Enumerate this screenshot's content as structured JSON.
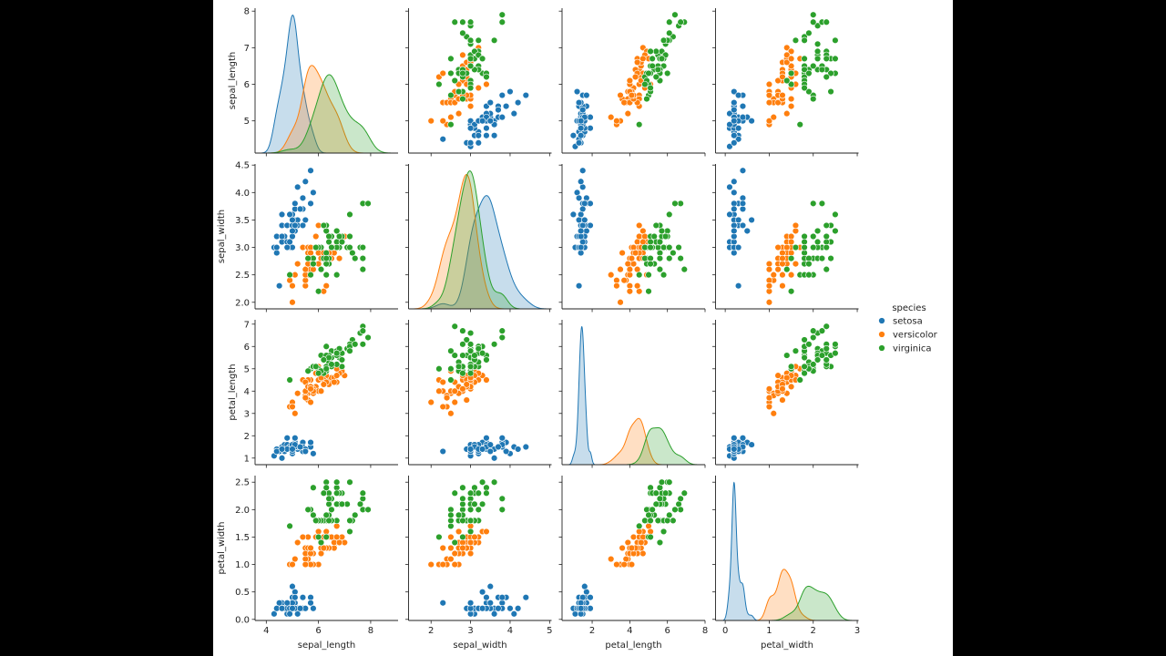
{
  "chart_data": {
    "type": "scatter",
    "layout": "pairplot",
    "diagonal": "kde",
    "grid": false,
    "legend_position": "right",
    "variables": [
      "sepal_length",
      "sepal_width",
      "petal_length",
      "petal_width"
    ],
    "axes": {
      "sepal_length": {
        "label": "sepal_length",
        "scatter_range": [
          4.12,
          8.08
        ],
        "diag_range": [
          3.57,
          9.05
        ],
        "xticks": [
          "4",
          "6",
          "8"
        ],
        "yticks": [
          "5",
          "6",
          "7",
          "8"
        ]
      },
      "sepal_width": {
        "label": "sepal_width",
        "scatter_range": [
          1.88,
          4.52
        ],
        "diag_range": [
          1.43,
          5.05
        ],
        "xticks": [
          "2",
          "3",
          "4",
          "5"
        ],
        "yticks": [
          "2.0",
          "2.5",
          "3.0",
          "3.5",
          "4.0",
          "4.5"
        ]
      },
      "petal_length": {
        "label": "petal_length",
        "scatter_range": [
          0.705,
          7.195
        ],
        "diag_range": [
          0.4,
          8.0
        ],
        "xticks": [
          "2",
          "4",
          "6",
          "8"
        ],
        "yticks": [
          "1",
          "2",
          "3",
          "4",
          "5",
          "6",
          "7"
        ]
      },
      "petal_width": {
        "label": "petal_width",
        "scatter_range": [
          -0.02,
          2.62
        ],
        "diag_range": [
          -0.22,
          3.03
        ],
        "xticks": [
          "0",
          "1",
          "2",
          "3"
        ],
        "yticks": [
          "0.0",
          "0.5",
          "1.0",
          "1.5",
          "2.0",
          "2.5"
        ]
      }
    },
    "legend": {
      "title": "species"
    },
    "series": [
      {
        "name": "setosa",
        "color": "#1f77b4",
        "rows": [
          [
            5.1,
            3.5,
            1.4,
            0.2
          ],
          [
            4.9,
            3.0,
            1.4,
            0.2
          ],
          [
            4.7,
            3.2,
            1.3,
            0.2
          ],
          [
            4.6,
            3.1,
            1.5,
            0.2
          ],
          [
            5.0,
            3.6,
            1.4,
            0.2
          ],
          [
            5.4,
            3.9,
            1.7,
            0.4
          ],
          [
            4.6,
            3.4,
            1.4,
            0.3
          ],
          [
            5.0,
            3.4,
            1.5,
            0.2
          ],
          [
            4.4,
            2.9,
            1.4,
            0.2
          ],
          [
            4.9,
            3.1,
            1.5,
            0.1
          ],
          [
            5.4,
            3.7,
            1.5,
            0.2
          ],
          [
            4.8,
            3.4,
            1.6,
            0.2
          ],
          [
            4.8,
            3.0,
            1.4,
            0.1
          ],
          [
            4.3,
            3.0,
            1.1,
            0.1
          ],
          [
            5.8,
            4.0,
            1.2,
            0.2
          ],
          [
            5.7,
            4.4,
            1.5,
            0.4
          ],
          [
            5.4,
            3.9,
            1.3,
            0.4
          ],
          [
            5.1,
            3.5,
            1.4,
            0.3
          ],
          [
            5.7,
            3.8,
            1.7,
            0.3
          ],
          [
            5.1,
            3.8,
            1.5,
            0.3
          ],
          [
            5.4,
            3.4,
            1.7,
            0.2
          ],
          [
            5.1,
            3.7,
            1.5,
            0.4
          ],
          [
            4.6,
            3.6,
            1.0,
            0.2
          ],
          [
            5.1,
            3.3,
            1.7,
            0.5
          ],
          [
            4.8,
            3.4,
            1.9,
            0.2
          ],
          [
            5.0,
            3.0,
            1.6,
            0.2
          ],
          [
            5.0,
            3.4,
            1.6,
            0.4
          ],
          [
            5.2,
            3.5,
            1.5,
            0.2
          ],
          [
            5.2,
            3.4,
            1.4,
            0.2
          ],
          [
            4.7,
            3.2,
            1.6,
            0.2
          ],
          [
            4.8,
            3.1,
            1.6,
            0.2
          ],
          [
            5.4,
            3.4,
            1.5,
            0.4
          ],
          [
            5.2,
            4.1,
            1.5,
            0.1
          ],
          [
            5.5,
            4.2,
            1.4,
            0.2
          ],
          [
            4.9,
            3.1,
            1.5,
            0.2
          ],
          [
            5.0,
            3.2,
            1.2,
            0.2
          ],
          [
            5.5,
            3.5,
            1.3,
            0.2
          ],
          [
            4.9,
            3.6,
            1.4,
            0.1
          ],
          [
            4.4,
            3.0,
            1.3,
            0.2
          ],
          [
            5.1,
            3.4,
            1.5,
            0.2
          ],
          [
            5.0,
            3.5,
            1.3,
            0.3
          ],
          [
            4.5,
            2.3,
            1.3,
            0.3
          ],
          [
            4.4,
            3.2,
            1.3,
            0.2
          ],
          [
            5.0,
            3.5,
            1.6,
            0.6
          ],
          [
            5.1,
            3.8,
            1.9,
            0.4
          ],
          [
            4.8,
            3.0,
            1.4,
            0.3
          ],
          [
            5.1,
            3.8,
            1.6,
            0.2
          ],
          [
            4.6,
            3.2,
            1.4,
            0.2
          ],
          [
            5.3,
            3.7,
            1.5,
            0.2
          ],
          [
            5.0,
            3.3,
            1.4,
            0.2
          ]
        ]
      },
      {
        "name": "versicolor",
        "color": "#ff7f0e",
        "rows": [
          [
            7.0,
            3.2,
            4.7,
            1.4
          ],
          [
            6.4,
            3.2,
            4.5,
            1.5
          ],
          [
            6.9,
            3.1,
            4.9,
            1.5
          ],
          [
            5.5,
            2.3,
            4.0,
            1.3
          ],
          [
            6.5,
            2.8,
            4.6,
            1.5
          ],
          [
            5.7,
            2.8,
            4.5,
            1.3
          ],
          [
            6.3,
            3.3,
            4.7,
            1.6
          ],
          [
            4.9,
            2.4,
            3.3,
            1.0
          ],
          [
            6.6,
            2.9,
            4.6,
            1.3
          ],
          [
            5.2,
            2.7,
            3.9,
            1.4
          ],
          [
            5.0,
            2.0,
            3.5,
            1.0
          ],
          [
            5.9,
            3.0,
            4.2,
            1.5
          ],
          [
            6.0,
            2.2,
            4.0,
            1.0
          ],
          [
            6.1,
            2.9,
            4.7,
            1.4
          ],
          [
            5.6,
            2.9,
            3.6,
            1.3
          ],
          [
            6.7,
            3.1,
            4.4,
            1.4
          ],
          [
            5.6,
            3.0,
            4.5,
            1.5
          ],
          [
            5.8,
            2.7,
            4.1,
            1.0
          ],
          [
            6.2,
            2.2,
            4.5,
            1.5
          ],
          [
            5.6,
            2.5,
            3.9,
            1.1
          ],
          [
            5.9,
            3.2,
            4.8,
            1.8
          ],
          [
            6.1,
            2.8,
            4.0,
            1.3
          ],
          [
            6.3,
            2.5,
            4.9,
            1.5
          ],
          [
            6.1,
            2.8,
            4.7,
            1.2
          ],
          [
            6.4,
            2.9,
            4.3,
            1.3
          ],
          [
            6.6,
            3.0,
            4.4,
            1.4
          ],
          [
            6.8,
            2.8,
            4.8,
            1.4
          ],
          [
            6.7,
            3.0,
            5.0,
            1.7
          ],
          [
            6.0,
            2.9,
            4.5,
            1.5
          ],
          [
            5.7,
            2.6,
            3.5,
            1.0
          ],
          [
            5.5,
            2.4,
            3.8,
            1.1
          ],
          [
            5.5,
            2.4,
            3.7,
            1.0
          ],
          [
            5.8,
            2.7,
            3.9,
            1.2
          ],
          [
            6.0,
            2.7,
            5.1,
            1.6
          ],
          [
            5.4,
            3.0,
            4.5,
            1.5
          ],
          [
            6.0,
            3.4,
            4.5,
            1.6
          ],
          [
            6.7,
            3.1,
            4.7,
            1.5
          ],
          [
            6.3,
            2.3,
            4.4,
            1.3
          ],
          [
            5.6,
            3.0,
            4.1,
            1.3
          ],
          [
            5.5,
            2.5,
            4.0,
            1.3
          ],
          [
            5.5,
            2.6,
            4.4,
            1.2
          ],
          [
            6.1,
            3.0,
            4.6,
            1.4
          ],
          [
            5.8,
            2.6,
            4.0,
            1.2
          ],
          [
            5.0,
            2.3,
            3.3,
            1.0
          ],
          [
            5.6,
            2.7,
            4.2,
            1.3
          ],
          [
            5.7,
            3.0,
            4.2,
            1.2
          ],
          [
            5.7,
            2.9,
            4.2,
            1.3
          ],
          [
            6.2,
            2.9,
            4.3,
            1.3
          ],
          [
            5.1,
            2.5,
            3.0,
            1.1
          ],
          [
            5.7,
            2.8,
            4.1,
            1.3
          ]
        ]
      },
      {
        "name": "virginica",
        "color": "#2ca02c",
        "rows": [
          [
            6.3,
            3.3,
            6.0,
            2.5
          ],
          [
            5.8,
            2.7,
            5.1,
            1.9
          ],
          [
            7.1,
            3.0,
            5.9,
            2.1
          ],
          [
            6.3,
            2.9,
            5.6,
            1.8
          ],
          [
            6.5,
            3.0,
            5.8,
            2.2
          ],
          [
            7.6,
            3.0,
            6.6,
            2.1
          ],
          [
            4.9,
            2.5,
            4.5,
            1.7
          ],
          [
            7.3,
            2.9,
            6.3,
            1.8
          ],
          [
            6.7,
            2.5,
            5.8,
            1.8
          ],
          [
            7.2,
            3.6,
            6.1,
            2.5
          ],
          [
            6.5,
            3.2,
            5.1,
            2.0
          ],
          [
            6.4,
            2.7,
            5.3,
            1.9
          ],
          [
            6.8,
            3.0,
            5.5,
            2.1
          ],
          [
            5.7,
            2.5,
            5.0,
            2.0
          ],
          [
            5.8,
            2.8,
            5.1,
            2.4
          ],
          [
            6.4,
            3.2,
            5.3,
            2.3
          ],
          [
            6.5,
            3.0,
            5.5,
            1.8
          ],
          [
            7.7,
            3.8,
            6.7,
            2.2
          ],
          [
            7.7,
            2.6,
            6.9,
            2.3
          ],
          [
            6.0,
            2.2,
            5.0,
            1.5
          ],
          [
            6.9,
            3.2,
            5.7,
            2.3
          ],
          [
            5.6,
            2.8,
            4.9,
            2.0
          ],
          [
            7.7,
            2.8,
            6.7,
            2.0
          ],
          [
            6.3,
            2.7,
            4.9,
            1.8
          ],
          [
            6.7,
            3.3,
            5.7,
            2.1
          ],
          [
            7.2,
            3.2,
            6.0,
            1.8
          ],
          [
            6.2,
            2.8,
            4.8,
            1.8
          ],
          [
            6.1,
            3.0,
            4.9,
            1.8
          ],
          [
            6.4,
            2.8,
            5.6,
            2.1
          ],
          [
            7.2,
            3.0,
            5.8,
            1.6
          ],
          [
            7.4,
            2.8,
            6.1,
            1.9
          ],
          [
            7.9,
            3.8,
            6.4,
            2.0
          ],
          [
            6.4,
            2.8,
            5.6,
            2.2
          ],
          [
            6.3,
            2.8,
            5.1,
            1.5
          ],
          [
            6.1,
            2.6,
            5.6,
            1.4
          ],
          [
            7.7,
            3.0,
            6.1,
            2.3
          ],
          [
            6.3,
            3.4,
            5.6,
            2.4
          ],
          [
            6.4,
            3.1,
            5.5,
            1.8
          ],
          [
            6.0,
            3.0,
            4.8,
            1.8
          ],
          [
            6.9,
            3.1,
            5.4,
            2.1
          ],
          [
            6.7,
            3.1,
            5.6,
            2.4
          ],
          [
            6.9,
            3.1,
            5.1,
            2.3
          ],
          [
            5.8,
            2.7,
            5.1,
            1.9
          ],
          [
            6.8,
            3.2,
            5.9,
            2.3
          ],
          [
            6.7,
            3.3,
            5.7,
            2.5
          ],
          [
            6.7,
            3.0,
            5.2,
            2.3
          ],
          [
            6.3,
            2.5,
            5.0,
            1.9
          ],
          [
            6.5,
            3.0,
            5.2,
            2.0
          ],
          [
            6.2,
            3.4,
            5.4,
            2.3
          ],
          [
            5.9,
            3.0,
            5.1,
            1.8
          ]
        ]
      }
    ]
  }
}
